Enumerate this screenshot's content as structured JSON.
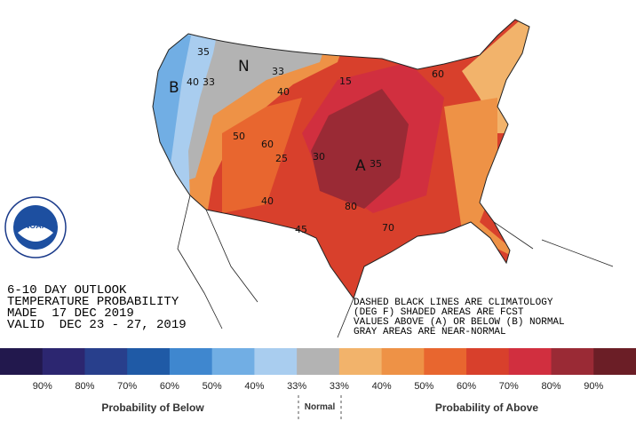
{
  "map": {
    "logo": "NOAA",
    "title_lines": [
      "6-10 DAY OUTLOOK",
      "TEMPERATURE PROBABILITY",
      "MADE  17 DEC 2019",
      "VALID  DEC 23 - 27, 2019"
    ],
    "note_lines": [
      "DASHED BLACK LINES ARE CLIMATOLOGY",
      "(DEG F) SHADED AREAS ARE FCST",
      "VALUES ABOVE (A) OR BELOW (B) NORMAL",
      "GRAY AREAS ARE NEAR-NORMAL"
    ],
    "labels": [
      "B",
      "N",
      "A",
      "35",
      "40",
      "33",
      "33",
      "40",
      "50",
      "60",
      "25",
      "30",
      "35",
      "15",
      "60",
      "40",
      "45",
      "70",
      "80"
    ]
  },
  "legend": {
    "colors": [
      "#22184d",
      "#2c2670",
      "#283f8c",
      "#1f5aa6",
      "#3f87cf",
      "#71aee4",
      "#a9cdef",
      "#b3b3b3",
      "#f2b36b",
      "#ee9246",
      "#e8662f",
      "#d8402c",
      "#d12f3f",
      "#9a2a35",
      "#6b1e26"
    ],
    "labels": [
      "90%",
      "80%",
      "70%",
      "60%",
      "50%",
      "40%",
      "33%",
      "33%",
      "40%",
      "50%",
      "60%",
      "70%",
      "80%",
      "90%"
    ],
    "below": "Probability of Below",
    "normal": "Normal",
    "above": "Probability of Above"
  }
}
